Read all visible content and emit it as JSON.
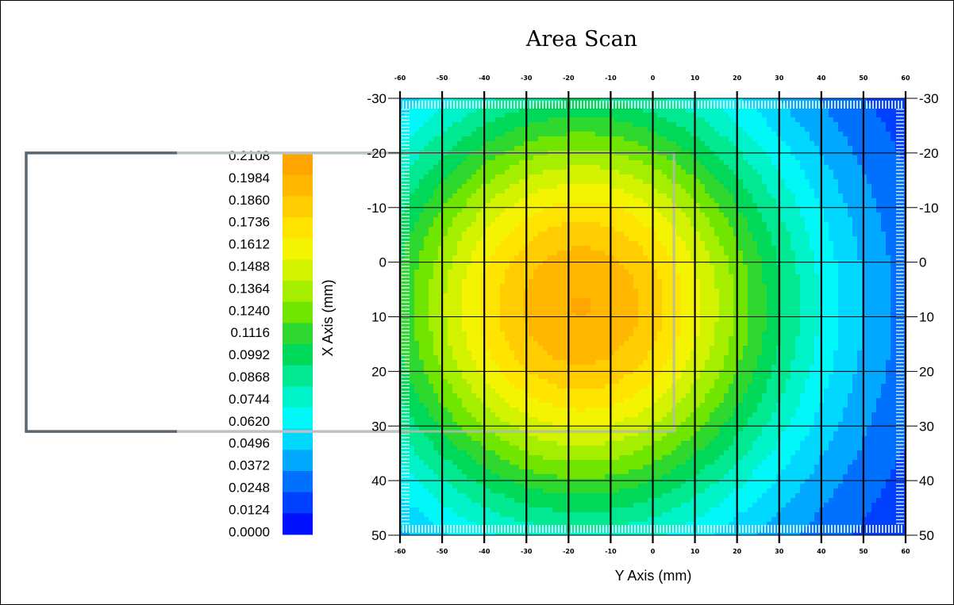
{
  "chart_data": {
    "type": "heatmap",
    "title": "Area Scan",
    "xlabel": "Y Axis (mm)",
    "ylabel": "X Axis (mm)",
    "x_ticks": [
      -60,
      -50,
      -40,
      -30,
      -20,
      -10,
      0,
      10,
      20,
      30,
      40,
      50,
      60
    ],
    "y_ticks": [
      -30,
      -20,
      -10,
      0,
      10,
      20,
      30,
      40,
      50
    ],
    "xlim": [
      -60,
      60
    ],
    "ylim": [
      -30,
      50
    ],
    "y_inverted": true,
    "grid": true,
    "legend_position": "left",
    "colorbar": {
      "labels": [
        "0.2108",
        "0.1984",
        "0.1860",
        "0.1736",
        "0.1612",
        "0.1488",
        "0.1364",
        "0.1240",
        "0.1116",
        "0.0992",
        "0.0868",
        "0.0744",
        "0.0620",
        "0.0496",
        "0.0372",
        "0.0248",
        "0.0124",
        "0.0000"
      ],
      "min": 0.0,
      "max": 0.2108,
      "colors": [
        "#ffa500",
        "#ffb700",
        "#ffcd00",
        "#ffe400",
        "#f4f400",
        "#d2f200",
        "#a6ee00",
        "#70e600",
        "#2ed82e",
        "#00d85a",
        "#00e890",
        "#00f2c8",
        "#00f8f8",
        "#00d8ff",
        "#00a8ff",
        "#0070ff",
        "#0040ff",
        "#0010ff"
      ]
    },
    "field": {
      "peak": {
        "x": -17,
        "y": 8,
        "value": 0.205
      },
      "sigma_x": 38,
      "sigma_y": 30
    },
    "highlight_box": {
      "x_range": [
        -60,
        5
      ],
      "y_range": [
        -20,
        31
      ]
    }
  }
}
